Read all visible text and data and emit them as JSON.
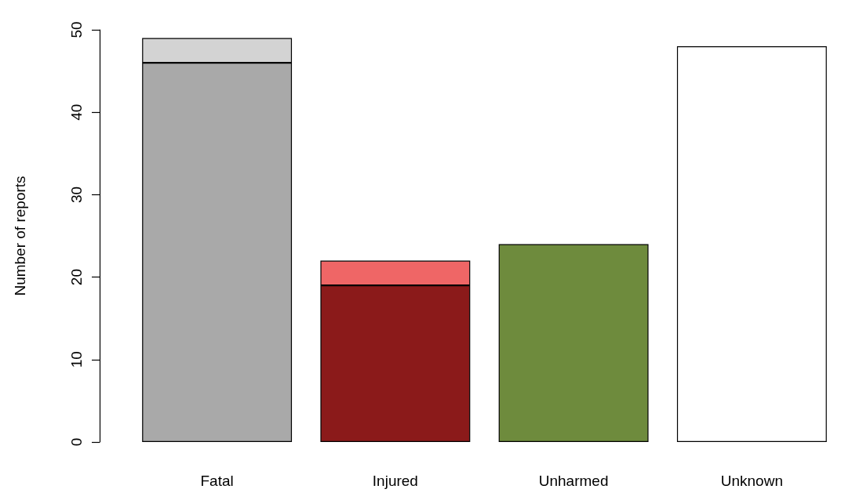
{
  "chart_data": {
    "type": "bar",
    "stacked": true,
    "ylabel": "Number of reports",
    "categories": [
      "Fatal",
      "Injured",
      "Unharmed",
      "Unknown"
    ],
    "series": [
      {
        "colors": [
          "#a9a9a9",
          "#8b1a1a",
          "#6e8b3d",
          "#ffffff"
        ],
        "values": [
          46,
          19,
          24,
          48
        ]
      },
      {
        "colors": [
          "#d3d3d3",
          "#ef6666",
          null,
          null
        ],
        "values": [
          3,
          3,
          null,
          null
        ]
      }
    ],
    "ylim": [
      0,
      50
    ],
    "yticks": [
      0,
      10,
      20,
      30,
      40,
      50
    ],
    "grid": false
  }
}
